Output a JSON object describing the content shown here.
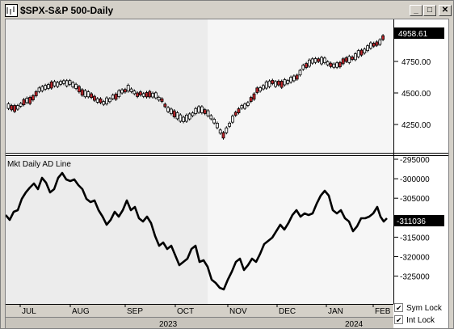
{
  "window": {
    "title": "$SPX-S&P 500-Daily",
    "min_symbol": "_",
    "max_symbol": "□",
    "close_symbol": "✕"
  },
  "price_pane": {
    "last_value": "4958.61",
    "scale_labels": [
      "4750.00",
      "4500.00",
      "4250.00"
    ],
    "up_color": "#ffffff",
    "down_color": "#c0282d"
  },
  "ad_pane": {
    "title": "Mkt Daily AD Line",
    "last_value": "-311036",
    "scale_labels": [
      "-295000",
      "-300000",
      "-305000",
      "-310000",
      "-315000",
      "-320000",
      "-325000"
    ]
  },
  "x_axis": {
    "months": [
      "JUL",
      "AUG",
      "SEP",
      "OCT",
      "NOV",
      "DEC",
      "JAN",
      "FEB"
    ],
    "years": [
      "2023",
      "2024"
    ]
  },
  "locks": {
    "sym_label": "Sym Lock",
    "int_label": "Int Lock",
    "sym_checked": true,
    "int_checked": true
  }
}
